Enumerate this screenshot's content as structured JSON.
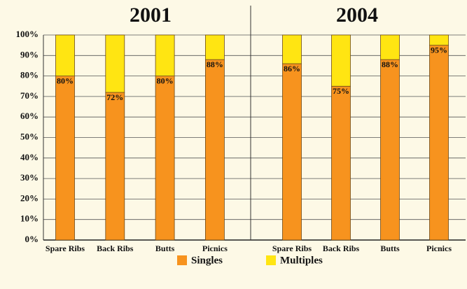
{
  "chart_data": {
    "type": "stacked-bar",
    "ylim": [
      0,
      100
    ],
    "yticks": [
      {
        "value": 0,
        "label": "0%"
      },
      {
        "value": 10,
        "label": "10%"
      },
      {
        "value": 20,
        "label": "20%"
      },
      {
        "value": 30,
        "label": "30%"
      },
      {
        "value": 40,
        "label": "40%"
      },
      {
        "value": 50,
        "label": "50%"
      },
      {
        "value": 60,
        "label": "60%"
      },
      {
        "value": 70,
        "label": "70%"
      },
      {
        "value": 80,
        "label": "80%"
      },
      {
        "value": 90,
        "label": "90%"
      },
      {
        "value": 100,
        "label": "100%"
      }
    ],
    "grid": true,
    "legend": "bottom",
    "series": [
      {
        "name": "Singles",
        "color": "#f7931e"
      },
      {
        "name": "Multiples",
        "color": "#ffe512"
      }
    ],
    "panels": [
      {
        "title": "2001",
        "categories": [
          "Spare Ribs",
          "Back Ribs",
          "Butts",
          "Picnics"
        ],
        "series": [
          {
            "values": [
              80,
              72,
              80,
              88
            ],
            "value_labels": [
              "80%",
              "72%",
              "80%",
              "88%"
            ]
          },
          {
            "values": [
              20,
              28,
              20,
              12
            ]
          }
        ]
      },
      {
        "title": "2004",
        "categories": [
          "Spare Ribs",
          "Back Ribs",
          "Butts",
          "Picnics"
        ],
        "series": [
          {
            "values": [
              86,
              75,
              88,
              95
            ],
            "value_labels": [
              "86%",
              "75%",
              "88%",
              "95%"
            ]
          },
          {
            "values": [
              14,
              25,
              12,
              5
            ]
          }
        ]
      }
    ]
  }
}
